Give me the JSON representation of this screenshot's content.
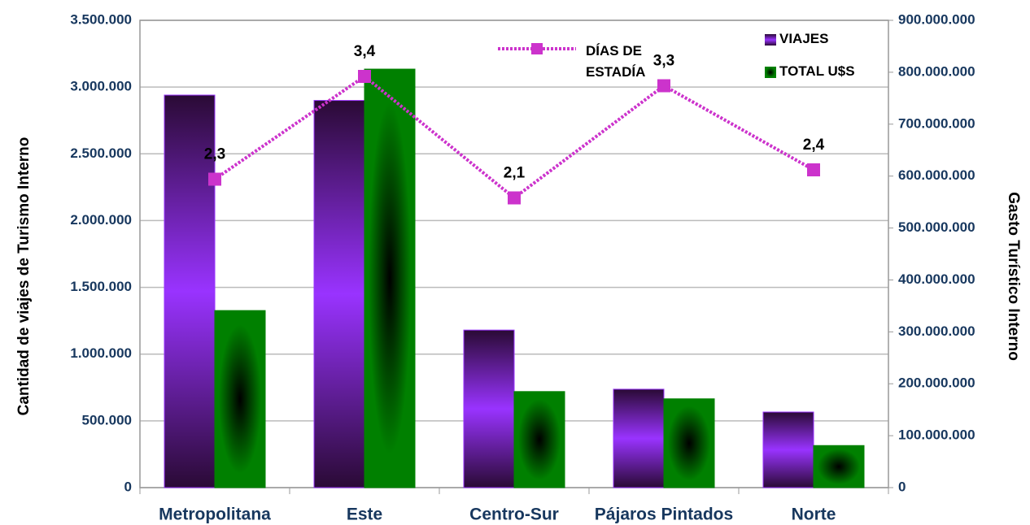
{
  "chart_data": {
    "type": "bar",
    "categories": [
      "Metropolitana",
      "Este",
      "Centro-Sur",
      "Pájaros Pintados",
      "Norte"
    ],
    "ylabel": "Cantidad de viajes de Turismo Interno",
    "y2label": "Gasto Turístico Interno",
    "ylim": [
      0,
      3500000
    ],
    "yticks": [
      {
        "value": 0,
        "label": "0"
      },
      {
        "value": 500000,
        "label": "500.000"
      },
      {
        "value": 1000000,
        "label": "1.000.000"
      },
      {
        "value": 1500000,
        "label": "1.500.000"
      },
      {
        "value": 2000000,
        "label": "2.000.000"
      },
      {
        "value": 2500000,
        "label": "2.500.000"
      },
      {
        "value": 3000000,
        "label": "3.000.000"
      },
      {
        "value": 3500000,
        "label": "3.500.000"
      }
    ],
    "y2lim": [
      0,
      900000000
    ],
    "y2ticks": [
      {
        "value": 0,
        "label": "0"
      },
      {
        "value": 100000000,
        "label": "100.000.000"
      },
      {
        "value": 200000000,
        "label": "200.000.000"
      },
      {
        "value": 300000000,
        "label": "300.000.000"
      },
      {
        "value": 400000000,
        "label": "400.000.000"
      },
      {
        "value": 500000000,
        "label": "500.000.000"
      },
      {
        "value": 600000000,
        "label": "600.000.000"
      },
      {
        "value": 700000000,
        "label": "700.000.000"
      },
      {
        "value": 800000000,
        "label": "800.000.000"
      },
      {
        "value": 900000000,
        "label": "900.000.000"
      }
    ],
    "y3lim": [
      -1,
      4
    ],
    "grid": true,
    "series": [
      {
        "name": "VIAJES",
        "type": "bar",
        "color": "#9933ff",
        "values": [
          2940000,
          2900000,
          1180000,
          737000,
          566000
        ]
      },
      {
        "name": "TOTAL U$S",
        "type": "bar",
        "axis": "y2",
        "color": "#008000",
        "values": [
          341000000,
          806000000,
          185000000,
          171000000,
          81000000
        ]
      },
      {
        "name": "DÍAS DE ESTADÍA",
        "type": "line",
        "axis": "y3",
        "color": "#cc33cc",
        "values": [
          2.3,
          3.4,
          2.1,
          3.3,
          2.4
        ],
        "value_labels": [
          "2,3",
          "3,4",
          "2,1",
          "3,3",
          "2,4"
        ]
      }
    ]
  }
}
